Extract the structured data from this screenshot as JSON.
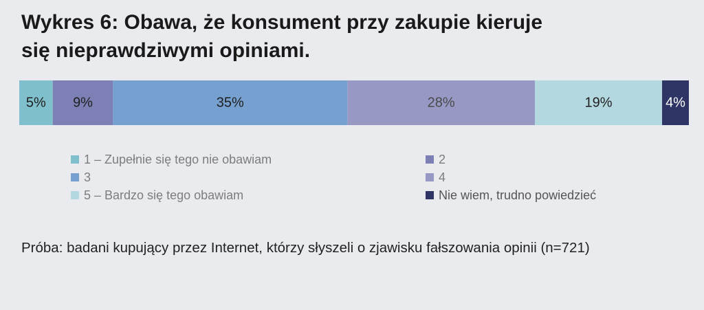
{
  "title_lines": [
    "Wykres 6: Obawa, że konsument przy zakupie kieruje",
    "się nieprawdziwymi opiniami."
  ],
  "note": "Próba: badani kupujący przez Internet, którzy słyszeli o zjawisku fałszowania opinii (n=721)",
  "chart_data": {
    "type": "bar",
    "orientation": "horizontal-stacked-100",
    "series": [
      {
        "name": "1 – Zupełnie się tego nie obawiam",
        "value": 5,
        "label": "5%",
        "color": "#7fc0cc",
        "label_color": "#1f1f1f"
      },
      {
        "name": "2",
        "value": 9,
        "label": "9%",
        "color": "#7d80b4",
        "label_color": "#1f1f1f"
      },
      {
        "name": "3",
        "value": 35,
        "label": "35%",
        "color": "#76a0d0",
        "label_color": "#1f1f1f"
      },
      {
        "name": "4",
        "value": 28,
        "label": "28%",
        "color": "#9898c4",
        "label_color": "#4a4a4a"
      },
      {
        "name": "5 – Bardzo się tego obawiam",
        "value": 19,
        "label": "19%",
        "color": "#b3d8e0",
        "label_color": "#1f1f1f"
      },
      {
        "name": "Nie wiem, trudno powiedzieć",
        "value": 4,
        "label": "4%",
        "color": "#2e3564",
        "label_color": "#ffffff"
      }
    ],
    "legend_order": [
      0,
      1,
      2,
      3,
      4,
      5
    ],
    "legend_placement": "bottom",
    "grid": false
  }
}
